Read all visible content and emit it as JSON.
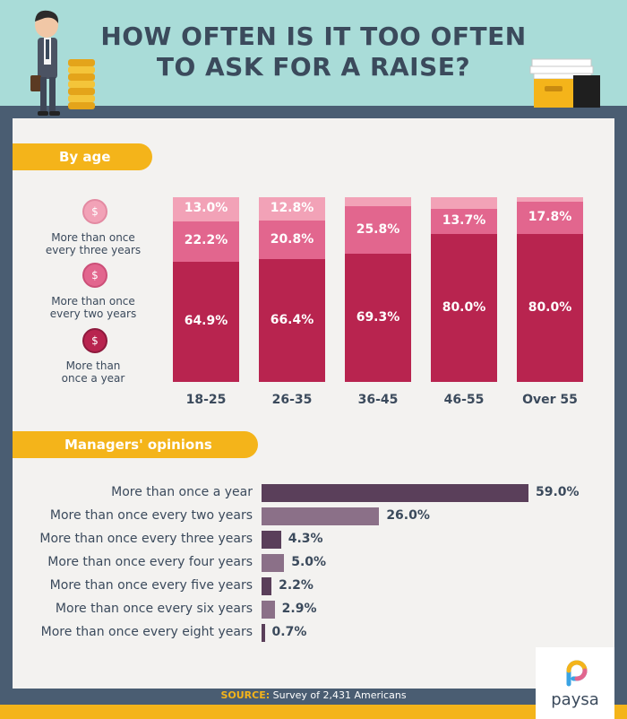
{
  "title_line1": "HOW OFTEN IS IT TOO OFTEN",
  "title_line2": "TO ASK FOR A RAISE?",
  "coin_symbol": "$",
  "colors": {
    "dark": "#b8244f",
    "mid": "#e2668e",
    "light": "#f2a2b7",
    "manager_dark": "#5a3f5a",
    "manager_light": "#8b7088"
  },
  "chart_data": [
    {
      "type": "bar",
      "stacked": true,
      "title": "By age",
      "categories": [
        "18-25",
        "26-35",
        "36-45",
        "46-55",
        "Over 55"
      ],
      "series": [
        {
          "name": "More than once a year",
          "values": [
            64.9,
            66.4,
            69.3,
            80.0,
            80.0
          ],
          "labels": [
            "64.9%",
            "66.4%",
            "69.3%",
            "80.0%",
            "80.0%"
          ]
        },
        {
          "name": "More than once every two years",
          "values": [
            22.2,
            20.8,
            25.8,
            13.7,
            17.8
          ],
          "labels": [
            "22.2%",
            "20.8%",
            "25.8%",
            "13.7%",
            "17.8%"
          ]
        },
        {
          "name": "More than once every three years",
          "values": [
            13.0,
            12.8,
            4.9,
            6.3,
            2.2
          ],
          "labels": [
            "13.0%",
            "12.8%",
            "",
            "",
            ""
          ]
        }
      ],
      "ylim": [
        0,
        100
      ],
      "legend": [
        {
          "line1": "More than once",
          "line2": "every three years"
        },
        {
          "line1": "More than once",
          "line2": "every two years"
        },
        {
          "line1": "More than",
          "line2": "once a year"
        }
      ]
    },
    {
      "type": "bar",
      "orientation": "horizontal",
      "title": "Managers' opinions",
      "categories": [
        "More than once a year",
        "More than once every two years",
        "More than once every three years",
        "More than once every four years",
        "More than once every five years",
        "More than once every six years",
        "More than once every eight years"
      ],
      "values": [
        59.0,
        26.0,
        4.3,
        5.0,
        2.2,
        2.9,
        0.7
      ],
      "labels": [
        "59.0%",
        "26.0%",
        "4.3%",
        "5.0%",
        "2.2%",
        "2.9%",
        "0.7%"
      ]
    }
  ],
  "source_label": "SOURCE:",
  "source_text": " Survey of 2,431 Americans",
  "brand": "paysa"
}
